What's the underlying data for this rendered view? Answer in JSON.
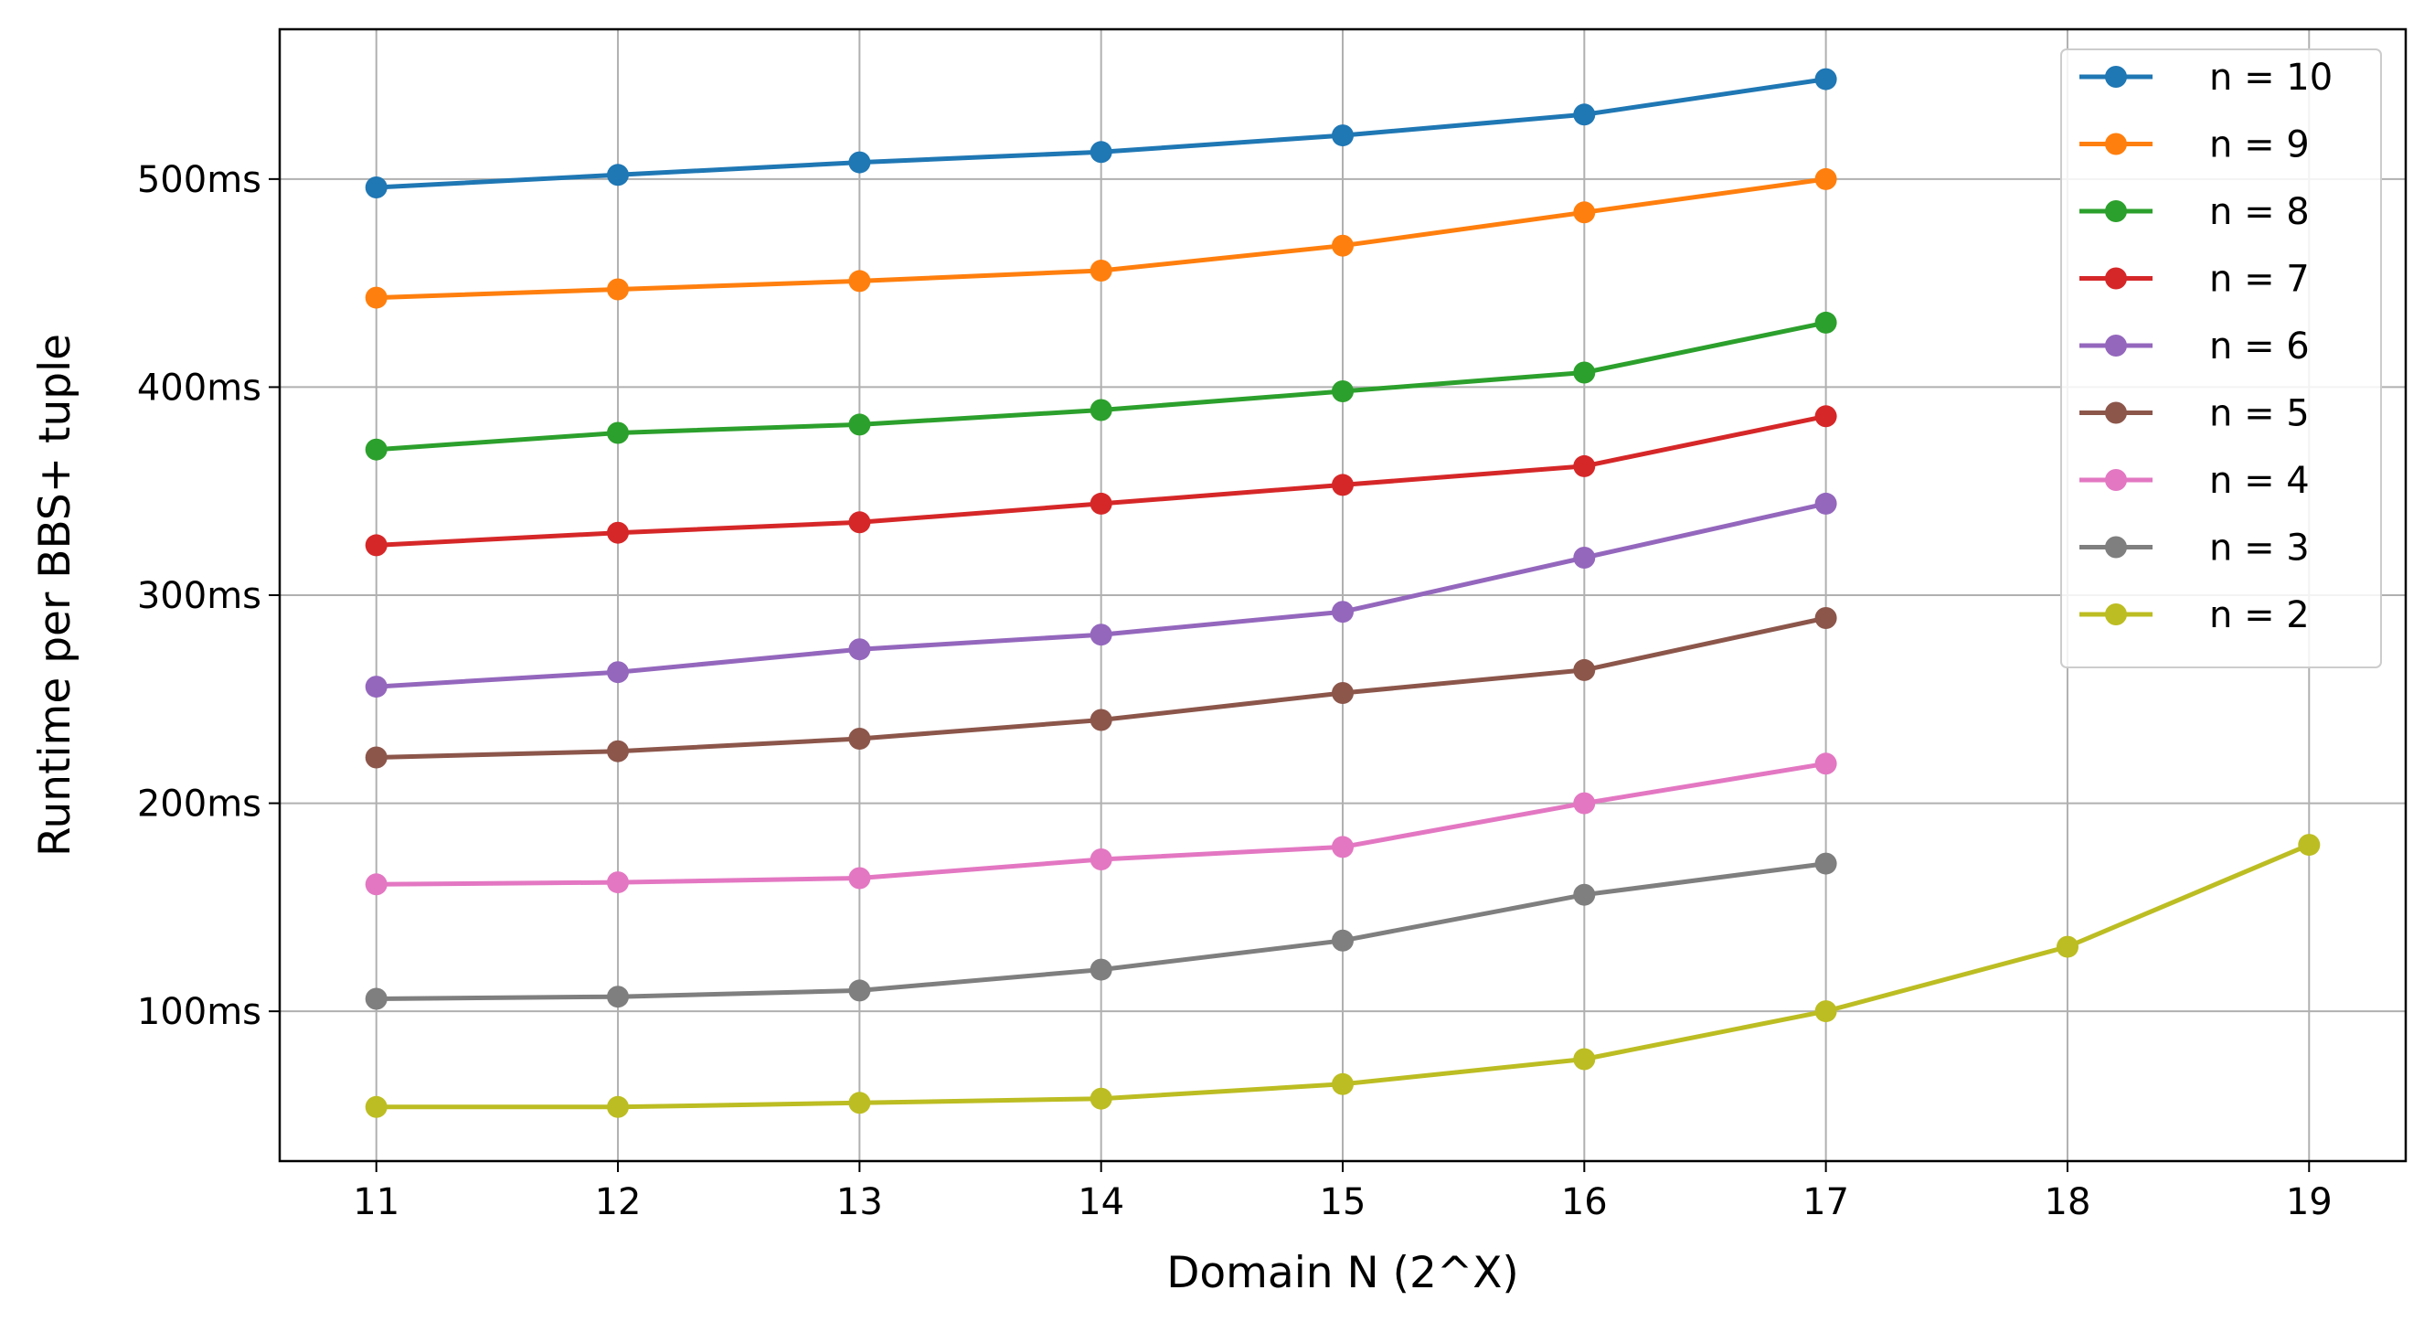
{
  "chart_data": {
    "type": "line",
    "title": "",
    "xlabel": "Domain N (2^X)",
    "ylabel": "Runtime per BBS+ tuple",
    "xlim": [
      10.6,
      19.4
    ],
    "ylim": [
      28,
      572
    ],
    "xticks": [
      11,
      12,
      13,
      14,
      15,
      16,
      17,
      18,
      19
    ],
    "yticks": [
      100,
      200,
      300,
      400,
      500
    ],
    "ytick_labels": [
      "100ms",
      "200ms",
      "300ms",
      "400ms",
      "500ms"
    ],
    "grid": true,
    "legend_position": "top-right",
    "series": [
      {
        "name": "n = 10",
        "color": "#1f77b4",
        "x": [
          11,
          12,
          13,
          14,
          15,
          16,
          17
        ],
        "y": [
          496,
          502,
          508,
          513,
          521,
          531,
          548
        ]
      },
      {
        "name": "n = 9",
        "color": "#ff7f0e",
        "x": [
          11,
          12,
          13,
          14,
          15,
          16,
          17
        ],
        "y": [
          443,
          447,
          451,
          456,
          468,
          484,
          500
        ]
      },
      {
        "name": "n = 8",
        "color": "#2ca02c",
        "x": [
          11,
          12,
          13,
          14,
          15,
          16,
          17
        ],
        "y": [
          370,
          378,
          382,
          389,
          398,
          407,
          431
        ]
      },
      {
        "name": "n = 7",
        "color": "#d62728",
        "x": [
          11,
          12,
          13,
          14,
          15,
          16,
          17
        ],
        "y": [
          324,
          330,
          335,
          344,
          353,
          362,
          386
        ]
      },
      {
        "name": "n = 6",
        "color": "#9467bd",
        "x": [
          11,
          12,
          13,
          14,
          15,
          16,
          17
        ],
        "y": [
          256,
          263,
          274,
          281,
          292,
          318,
          344
        ]
      },
      {
        "name": "n = 5",
        "color": "#8c564b",
        "x": [
          11,
          12,
          13,
          14,
          15,
          16,
          17
        ],
        "y": [
          222,
          225,
          231,
          240,
          253,
          264,
          289
        ]
      },
      {
        "name": "n = 4",
        "color": "#e377c2",
        "x": [
          11,
          12,
          13,
          14,
          15,
          16,
          17
        ],
        "y": [
          161,
          162,
          164,
          173,
          179,
          200,
          219
        ]
      },
      {
        "name": "n = 3",
        "color": "#7f7f7f",
        "x": [
          11,
          12,
          13,
          14,
          15,
          16,
          17
        ],
        "y": [
          106,
          107,
          110,
          120,
          134,
          156,
          171
        ]
      },
      {
        "name": "n = 2",
        "color": "#bcbd22",
        "x": [
          11,
          12,
          13,
          14,
          15,
          16,
          17,
          18,
          19
        ],
        "y": [
          54,
          54,
          56,
          58,
          65,
          77,
          100,
          131,
          180
        ]
      }
    ]
  }
}
